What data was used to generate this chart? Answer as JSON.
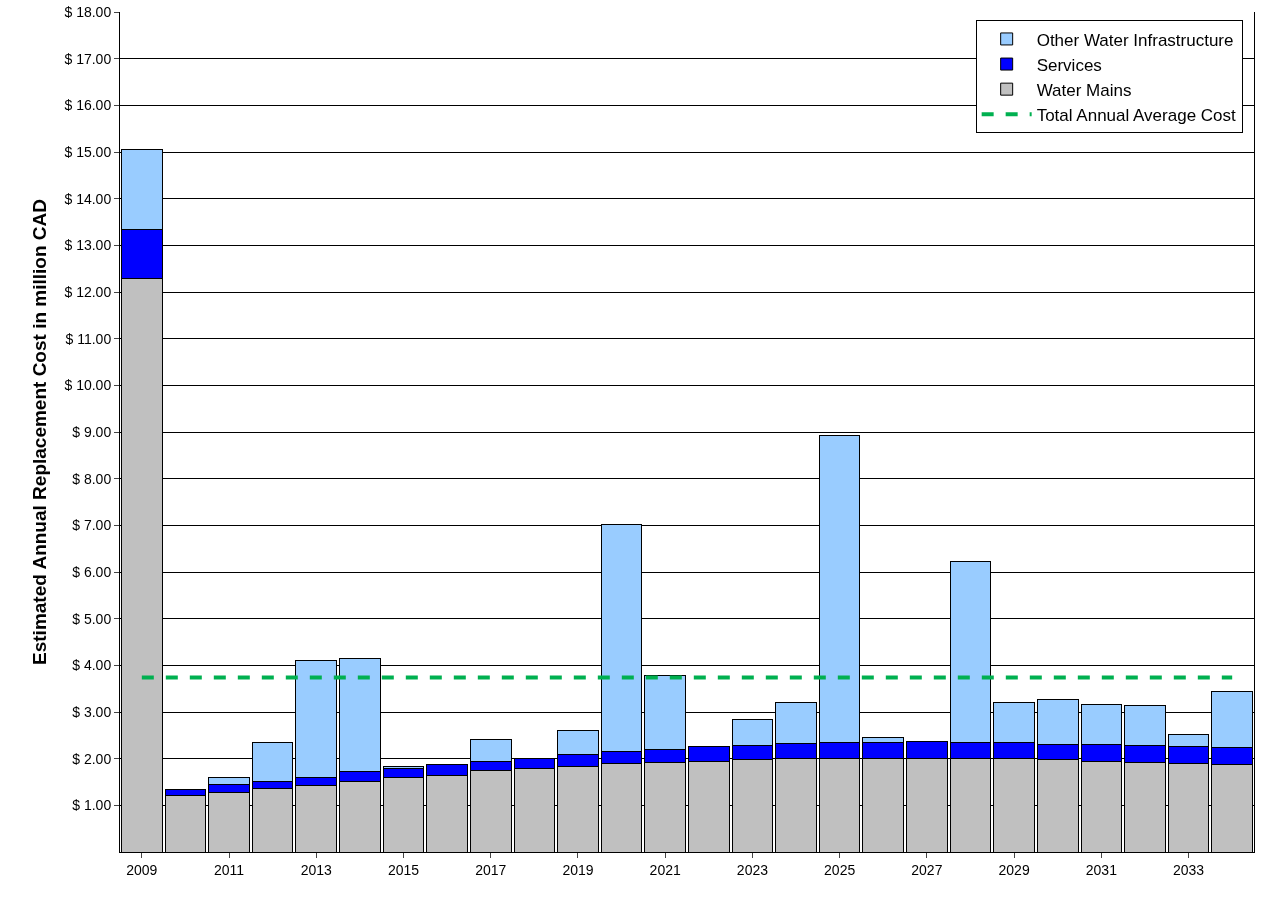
{
  "chart_data": {
    "type": "bar",
    "stacked": true,
    "ylabel": "Estimated Annual Replacement Cost in million CAD",
    "categories": [
      "2009",
      null,
      "2011",
      null,
      "2013",
      null,
      "2015",
      null,
      "2017",
      null,
      "2019",
      null,
      "2021",
      null,
      "2023",
      null,
      "2025",
      null,
      "2027",
      null,
      "2029",
      null,
      "2031",
      null,
      "2033",
      null
    ],
    "series": [
      {
        "name": "Water Mains",
        "color": "#c0c0c0",
        "values": [
          12.3,
          1.22,
          1.28,
          1.37,
          1.43,
          1.52,
          1.6,
          1.65,
          1.74,
          1.78,
          1.83,
          1.9,
          1.92,
          1.95,
          1.98,
          2.0,
          2.0,
          2.0,
          2.0,
          2.0,
          2.0,
          1.98,
          1.95,
          1.92,
          1.9,
          1.87
        ]
      },
      {
        "name": "Services",
        "color": "#0000ff",
        "values": [
          1.05,
          0.11,
          0.17,
          0.15,
          0.17,
          0.2,
          0.2,
          0.22,
          0.21,
          0.23,
          0.26,
          0.25,
          0.28,
          0.31,
          0.31,
          0.32,
          0.34,
          0.34,
          0.37,
          0.34,
          0.34,
          0.33,
          0.36,
          0.36,
          0.36,
          0.37
        ]
      },
      {
        "name": "Other Water Infrastructure",
        "color": "#99ccff",
        "values": [
          1.7,
          0.02,
          0.15,
          0.83,
          2.5,
          2.43,
          0.03,
          0,
          0.47,
          0,
          0.51,
          4.87,
          1.58,
          0,
          0.56,
          0.88,
          6.59,
          0.11,
          0,
          3.88,
          0.86,
          0.95,
          0.86,
          0.87,
          0.25,
          1.21
        ]
      }
    ],
    "ref_lines": [
      {
        "axis": "y",
        "value": 3.74,
        "label": "Total Annual Average Cost",
        "color": "#00b050",
        "line_style": "dashed"
      }
    ],
    "ylim": [
      0,
      18
    ],
    "yticks": [
      {
        "value": 1,
        "label": "$ 1.00"
      },
      {
        "value": 2,
        "label": "$ 2.00"
      },
      {
        "value": 3,
        "label": "$ 3.00"
      },
      {
        "value": 4,
        "label": "$ 4.00"
      },
      {
        "value": 5,
        "label": "$ 5.00"
      },
      {
        "value": 6,
        "label": "$ 6.00"
      },
      {
        "value": 7,
        "label": "$ 7.00"
      },
      {
        "value": 8,
        "label": "$ 8.00"
      },
      {
        "value": 9,
        "label": "$ 9.00"
      },
      {
        "value": 10,
        "label": "$ 10.00"
      },
      {
        "value": 11,
        "label": "$ 11.00"
      },
      {
        "value": 12,
        "label": "$ 12.00"
      },
      {
        "value": 13,
        "label": "$ 13.00"
      },
      {
        "value": 14,
        "label": "$ 14.00"
      },
      {
        "value": 15,
        "label": "$ 15.00"
      },
      {
        "value": 16,
        "label": "$ 16.00"
      },
      {
        "value": 17,
        "label": "$ 17.00"
      },
      {
        "value": 18,
        "label": "$ 18.00"
      }
    ],
    "grid": "y",
    "legend": "top right"
  }
}
